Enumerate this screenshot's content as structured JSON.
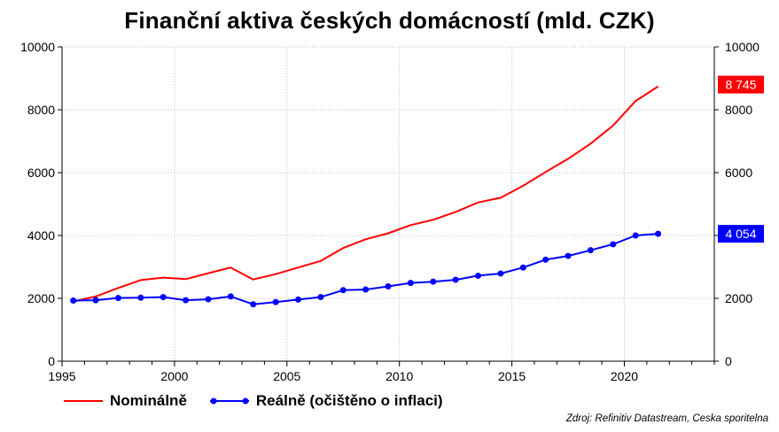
{
  "title": "Finanční aktiva českých domácností (mld. CZK)",
  "source": "Zdroj: Refinitiv Datastream, Ceska sporitelna",
  "legend": {
    "nominal": "Nominálně",
    "real": "Reálně (očištěno o inflaci)"
  },
  "colors": {
    "nominal": "#ff0000",
    "real": "#0000ff",
    "grid": "#c0c0c0"
  },
  "end_labels": {
    "nominal": "8 745",
    "real": "4 054"
  },
  "chart_data": {
    "type": "line",
    "title": "Finanční aktiva českých domácností (mld. CZK)",
    "xlim": [
      1995,
      2024
    ],
    "ylim": [
      0,
      10000
    ],
    "x_ticks": [
      1995,
      2000,
      2005,
      2010,
      2015,
      2020
    ],
    "y_ticks": [
      0,
      2000,
      4000,
      6000,
      8000,
      10000
    ],
    "grid": true,
    "secondary_y_axis": true,
    "legend_position": "bottom-left",
    "series": [
      {
        "name": "Nominálně",
        "color": "#ff0000",
        "markers": false,
        "x": [
          1995.5,
          1996.5,
          1997.5,
          1998.5,
          1999.5,
          2000.5,
          2001.5,
          2002.5,
          2003.5,
          2004.5,
          2005.5,
          2006.5,
          2007.5,
          2008.5,
          2009.5,
          2010.5,
          2011.5,
          2012.5,
          2013.5,
          2014.5,
          2015.5,
          2016.5,
          2017.5,
          2018.5,
          2019.5,
          2020.5,
          2021.5
        ],
        "y": [
          1900,
          2060,
          2330,
          2580,
          2660,
          2610,
          2800,
          2980,
          2600,
          2770,
          2980,
          3190,
          3600,
          3880,
          4070,
          4330,
          4500,
          4750,
          5050,
          5200,
          5580,
          6020,
          6440,
          6920,
          7500,
          8280,
          8745
        ]
      },
      {
        "name": "Reálně (očištěno o inflaci)",
        "color": "#0000ff",
        "markers": true,
        "x": [
          1995.5,
          1996.5,
          1997.5,
          1998.5,
          1999.5,
          2000.5,
          2001.5,
          2002.5,
          2003.5,
          2004.5,
          2005.5,
          2006.5,
          2007.5,
          2008.5,
          2009.5,
          2010.5,
          2011.5,
          2012.5,
          2013.5,
          2014.5,
          2015.5,
          2016.5,
          2017.5,
          2018.5,
          2019.5,
          2020.5,
          2021.5
        ],
        "y": [
          1930,
          1940,
          2010,
          2020,
          2040,
          1940,
          1970,
          2060,
          1810,
          1880,
          1960,
          2040,
          2260,
          2280,
          2380,
          2490,
          2530,
          2590,
          2720,
          2790,
          2980,
          3230,
          3350,
          3530,
          3720,
          4000,
          4054
        ]
      }
    ]
  }
}
